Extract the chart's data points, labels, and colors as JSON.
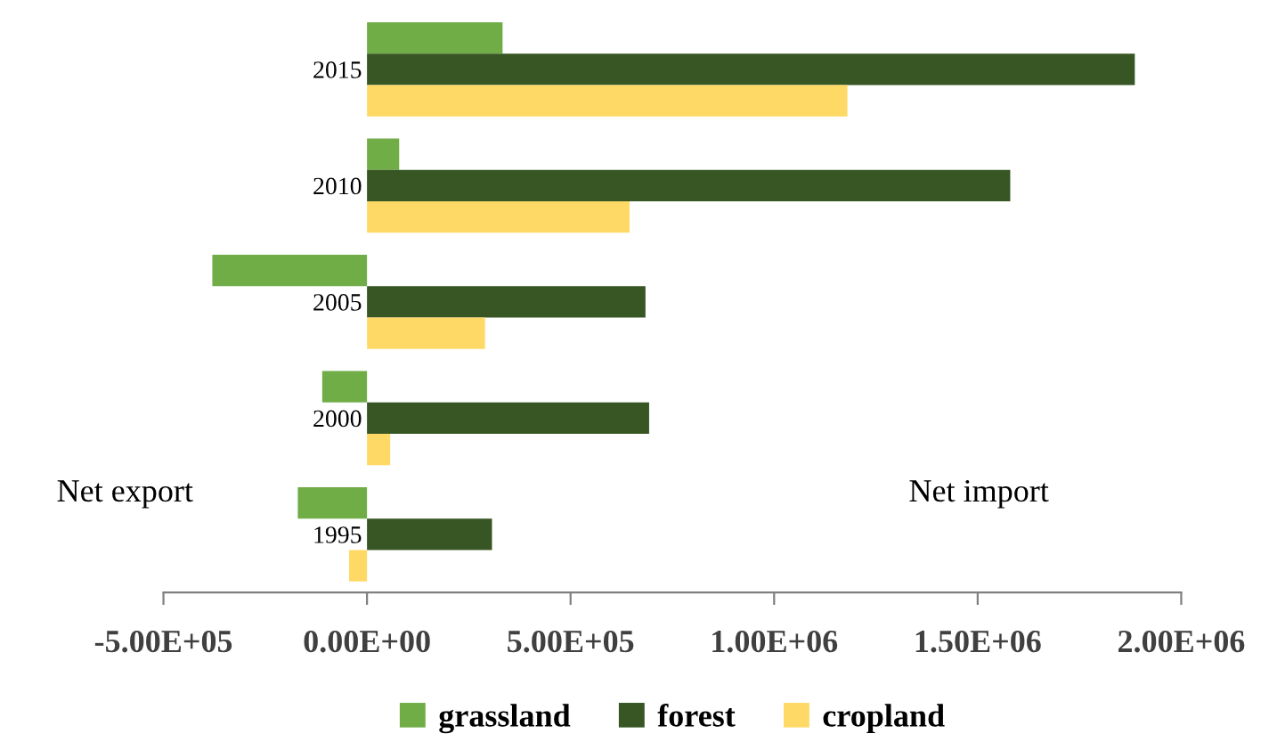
{
  "chart_data": {
    "type": "bar",
    "orientation": "horizontal",
    "categories": [
      "2015",
      "2010",
      "2005",
      "2000",
      "1995"
    ],
    "series": [
      {
        "name": "grassland",
        "color": "#70ad47",
        "values": [
          333000,
          79000,
          -380000,
          -110000,
          -170000
        ]
      },
      {
        "name": "forest",
        "color": "#375623",
        "values": [
          1886000,
          1580000,
          684000,
          693000,
          307000
        ]
      },
      {
        "name": "cropland",
        "color": "#ffd966",
        "values": [
          1180000,
          645000,
          290000,
          57000,
          -44000
        ]
      }
    ],
    "xlim": [
      -500000,
      2000000
    ],
    "xticks": [
      {
        "value": -500000,
        "label": "-5.00E+05"
      },
      {
        "value": 0,
        "label": "0.00E+00"
      },
      {
        "value": 500000,
        "label": "5.00E+05"
      },
      {
        "value": 1000000,
        "label": "1.00E+06"
      },
      {
        "value": 1500000,
        "label": "1.50E+06"
      },
      {
        "value": 2000000,
        "label": "2.00E+06"
      }
    ],
    "annotations": [
      "Net export",
      "Net import"
    ],
    "grid": false,
    "legend": "bottom"
  }
}
